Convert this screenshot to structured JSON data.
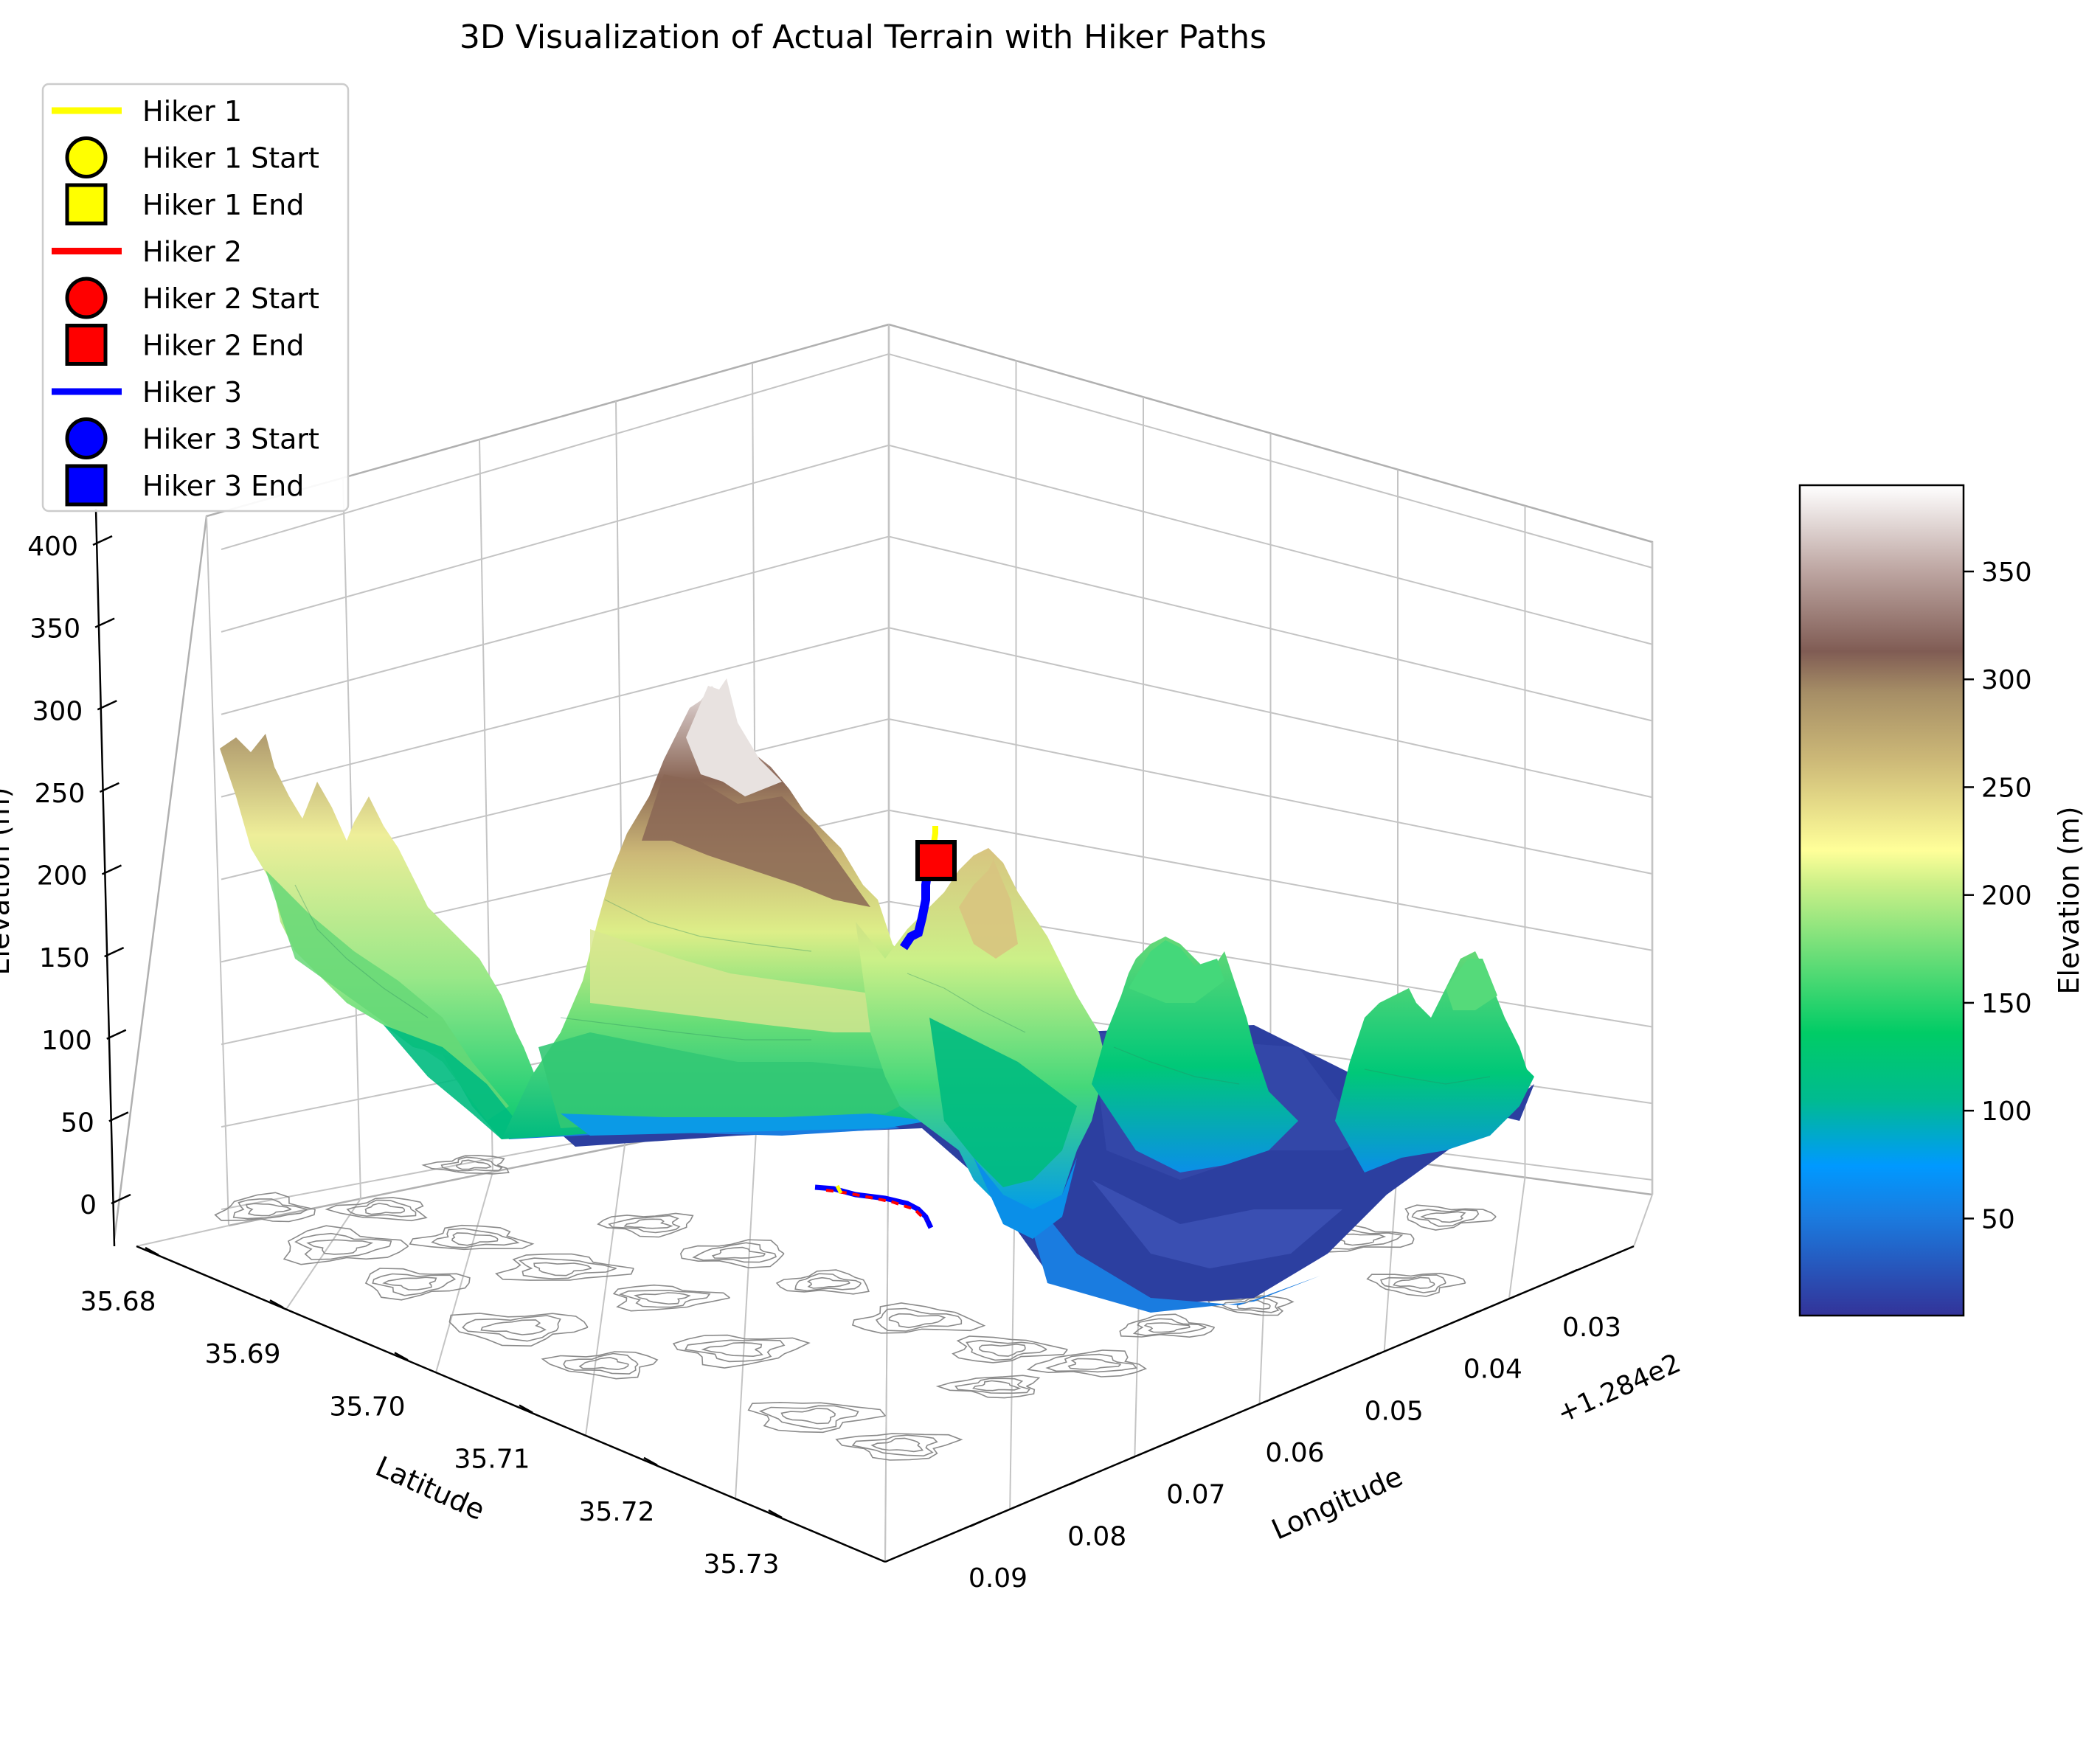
{
  "chart_data": {
    "type": "surface3d",
    "title": "3D Visualization of Actual Terrain with Hiker Paths",
    "xlabel": "Latitude",
    "ylabel": "Longitude",
    "zlabel": "Elevation (m)",
    "x_ticks": [
      "35.68",
      "35.69",
      "35.70",
      "35.71",
      "35.72",
      "35.73"
    ],
    "y_ticks": [
      "0.03",
      "0.04",
      "0.05",
      "0.06",
      "0.07",
      "0.08",
      "0.09"
    ],
    "y_offset_label": "+1.284e2",
    "z_ticks": [
      "0",
      "50",
      "100",
      "150",
      "200",
      "250",
      "300",
      "350",
      "400"
    ],
    "zlim": [
      0,
      400
    ],
    "colormap": "terrain",
    "colorbar": {
      "label": "Elevation (m)",
      "ticks": [
        "50",
        "100",
        "150",
        "200",
        "250",
        "300",
        "350"
      ],
      "range": [
        5,
        390
      ]
    },
    "legend": {
      "placement": "upper-left",
      "entries": [
        {
          "label": "Hiker 1",
          "kind": "line",
          "color": "#ffff00"
        },
        {
          "label": "Hiker 1 Start",
          "kind": "circle",
          "color": "#ffff00"
        },
        {
          "label": "Hiker 1 End",
          "kind": "square",
          "color": "#ffff00"
        },
        {
          "label": "Hiker 2",
          "kind": "line",
          "color": "#ff0000"
        },
        {
          "label": "Hiker 2 Start",
          "kind": "circle",
          "color": "#ff0000"
        },
        {
          "label": "Hiker 2 End",
          "kind": "square",
          "color": "#ff0000"
        },
        {
          "label": "Hiker 3",
          "kind": "line",
          "color": "#0000ff"
        },
        {
          "label": "Hiker 3 Start",
          "kind": "circle",
          "color": "#0000ff"
        },
        {
          "label": "Hiker 3 End",
          "kind": "square",
          "color": "#0000ff"
        }
      ]
    },
    "grid": true
  }
}
